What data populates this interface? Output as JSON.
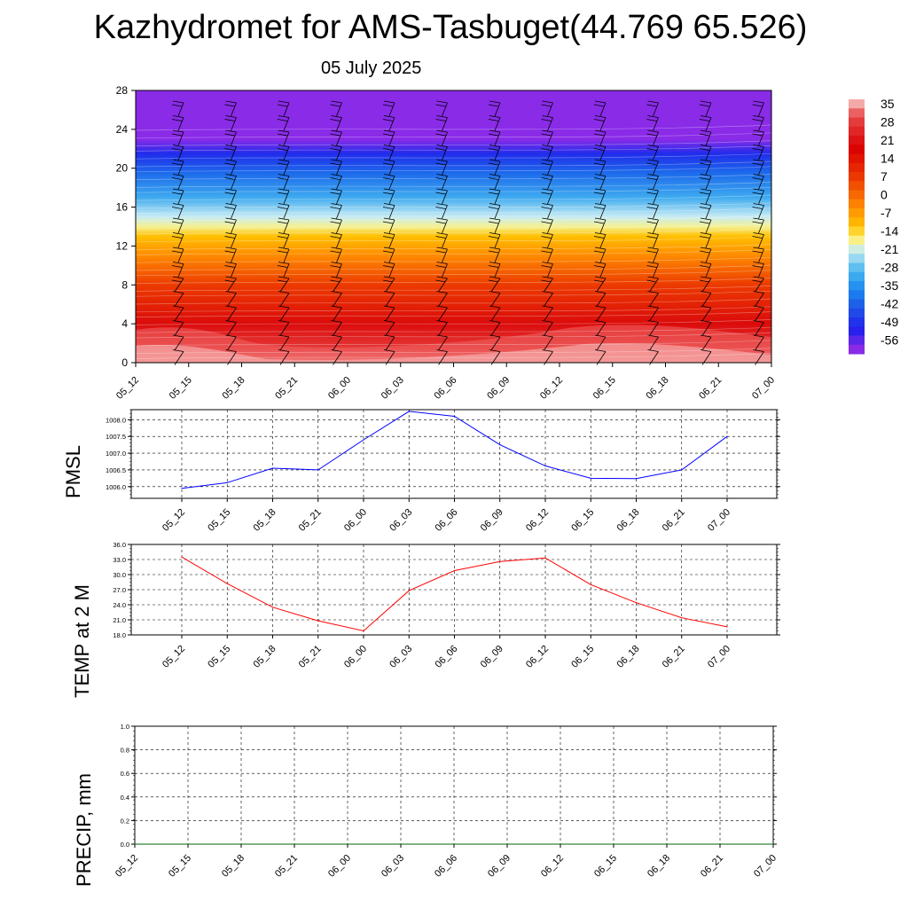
{
  "header": {
    "title": "Kazhydromet for AMS-Tasbuget(44.769 65.526)",
    "date": "05 July 2025"
  },
  "chart_data": [
    {
      "type": "heatmap",
      "name": "vertical-profile",
      "xlabel": "",
      "ylabel": "",
      "x_ticks": [
        "05_12",
        "05_15",
        "05_18",
        "05_21",
        "06_00",
        "06_03",
        "06_06",
        "06_09",
        "06_12",
        "06_15",
        "06_18",
        "06_21",
        "07_00"
      ],
      "y_ticks": [
        "0",
        "4",
        "8",
        "12",
        "16",
        "20",
        "24",
        "28"
      ],
      "ylim": [
        0,
        28
      ],
      "colorbar": {
        "labels": [
          "35",
          "28",
          "21",
          "14",
          "7",
          "0",
          "-7",
          "-14",
          "-21",
          "-28",
          "-35",
          "-42",
          "-49",
          "-56"
        ]
      },
      "colors": {
        "stops": [
          [
            0.0,
            "#f4a9a9"
          ],
          [
            0.05,
            "#e84848"
          ],
          [
            0.18,
            "#d90000"
          ],
          [
            0.3,
            "#ec3a00"
          ],
          [
            0.42,
            "#ff8a00"
          ],
          [
            0.5,
            "#ffc000"
          ],
          [
            0.55,
            "#fff27a"
          ],
          [
            0.6,
            "#c8ecf4"
          ],
          [
            0.68,
            "#4ab6ee"
          ],
          [
            0.76,
            "#1a86f0"
          ],
          [
            0.84,
            "#2050e6"
          ],
          [
            0.92,
            "#2020ec"
          ],
          [
            1.0,
            "#8a2be8"
          ]
        ],
        "barb": "#000000"
      },
      "wind_barbs": true
    },
    {
      "type": "line",
      "name": "pmsl",
      "ylabel": "PMSL",
      "categories": [
        "05_12",
        "05_15",
        "05_18",
        "05_21",
        "06_00",
        "06_03",
        "06_06",
        "06_09",
        "06_12",
        "06_15",
        "06_18",
        "06_21",
        "07_00"
      ],
      "y_ticks": [
        "1006.0",
        "1006.5",
        "1007.0",
        "1007.5",
        "1008.0"
      ],
      "ylim": [
        1005.65,
        1008.3
      ],
      "series": [
        {
          "values": [
            1005.95,
            1006.12,
            1006.55,
            1006.5,
            1007.4,
            1008.25,
            1008.1,
            1007.25,
            1006.62,
            1006.25,
            1006.24,
            1006.5,
            1007.5
          ]
        }
      ],
      "color": "#0000ff",
      "grid": true
    },
    {
      "type": "line",
      "name": "temp",
      "ylabel": "TEMP at 2 M",
      "categories": [
        "05_12",
        "05_15",
        "05_18",
        "05_21",
        "06_00",
        "06_03",
        "06_06",
        "06_09",
        "06_12",
        "06_15",
        "06_18",
        "06_21",
        "07_00"
      ],
      "y_ticks": [
        "18.0",
        "21.0",
        "24.0",
        "27.0",
        "30.0",
        "33.0",
        "36.0"
      ],
      "ylim": [
        18,
        36
      ],
      "series": [
        {
          "values": [
            33.5,
            28.2,
            23.5,
            20.8,
            18.8,
            26.8,
            30.8,
            32.6,
            33.3,
            28.0,
            24.4,
            21.4,
            19.6
          ]
        }
      ],
      "color": "#ff0000",
      "grid": true
    },
    {
      "type": "line",
      "name": "precip",
      "ylabel": "PRECIP, mm",
      "categories": [
        "05_12",
        "05_15",
        "05_18",
        "05_21",
        "06_00",
        "06_03",
        "06_06",
        "06_09",
        "06_12",
        "06_15",
        "06_18",
        "06_21",
        "07_00"
      ],
      "y_ticks": [
        "0.0",
        "0.2",
        "0.4",
        "0.6",
        "0.8",
        "1.0"
      ],
      "ylim": [
        0,
        1
      ],
      "series": [
        {
          "values": [
            0,
            0,
            0,
            0,
            0,
            0,
            0,
            0,
            0,
            0,
            0,
            0,
            0
          ]
        }
      ],
      "color": "#006400",
      "grid": true
    }
  ]
}
